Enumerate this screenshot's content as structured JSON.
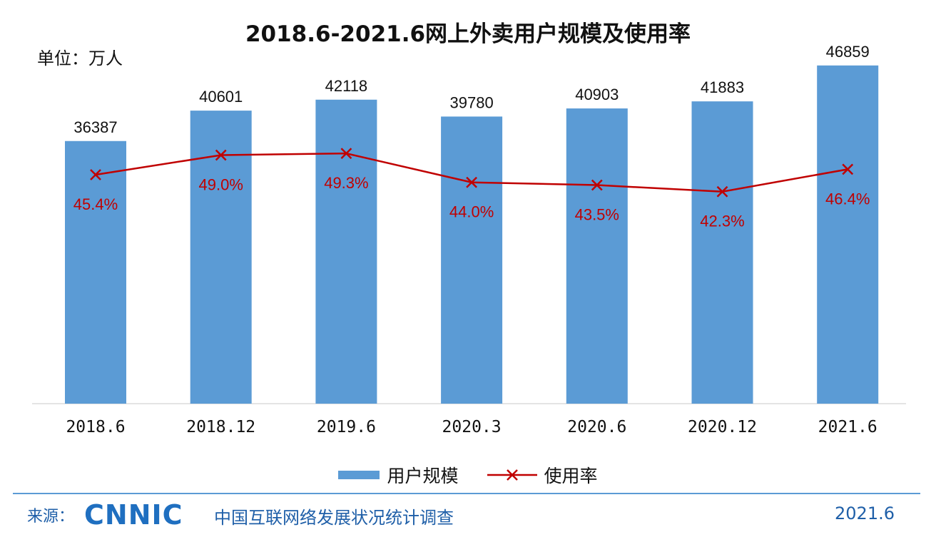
{
  "unit_label": "单位：万人",
  "chart_data": {
    "type": "bar",
    "title": "2018.6-2021.6网上外卖用户规模及使用率",
    "categories": [
      "2018.6",
      "2018.12",
      "2019.6",
      "2020.3",
      "2020.6",
      "2020.12",
      "2021.6"
    ],
    "series": [
      {
        "name": "用户规模",
        "type": "bar",
        "values": [
          36387,
          40601,
          42118,
          39780,
          40903,
          41883,
          46859
        ],
        "labels": [
          "36387",
          "40601",
          "42118",
          "39780",
          "40903",
          "41883",
          "46859"
        ]
      },
      {
        "name": "使用率",
        "type": "line",
        "values": [
          45.4,
          49.0,
          49.3,
          44.0,
          43.5,
          42.3,
          46.4
        ],
        "labels": [
          "45.4%",
          "49.0%",
          "49.3%",
          "44.0%",
          "43.5%",
          "42.3%",
          "46.4%"
        ]
      }
    ],
    "ylim": [
      0,
      50000
    ],
    "legend_position": "bottom",
    "grid": false,
    "colors": {
      "bar": "#5b9bd5",
      "line": "#c00000"
    }
  },
  "footer": {
    "source_label": "来源：",
    "logo_text": "CNNIC",
    "survey_name": "中国互联网络发展状况统计调查",
    "date": "2021.6"
  }
}
